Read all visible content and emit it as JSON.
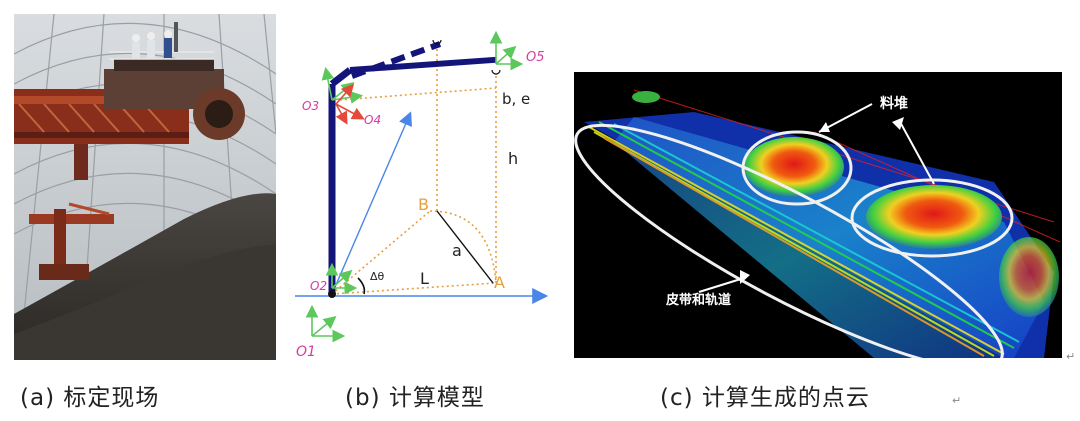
{
  "captions": {
    "a": "(a) 标定现场",
    "b": "(b) 计算模型",
    "c": "(c) 计算生成的点云"
  },
  "return_mark": "↵",
  "model": {
    "frames": [
      "O5",
      "O3",
      "O4",
      "O2",
      "O1"
    ],
    "labels": {
      "be": "b, e",
      "h": "h",
      "B": "B",
      "A": "A",
      "a": "a",
      "L": "L",
      "dtheta": "Δθ"
    }
  },
  "pointcloud": {
    "label_stockpile": "料堆",
    "label_belt": "皮带和轨道"
  },
  "colors": {
    "arm": "#14157a",
    "axis_green": "#5cc85c",
    "axis_red": "#e34a3a",
    "axis_blue": "#4a86e8",
    "dotted_orange": "#e6a03c",
    "frame_label": "#d63ca0"
  }
}
